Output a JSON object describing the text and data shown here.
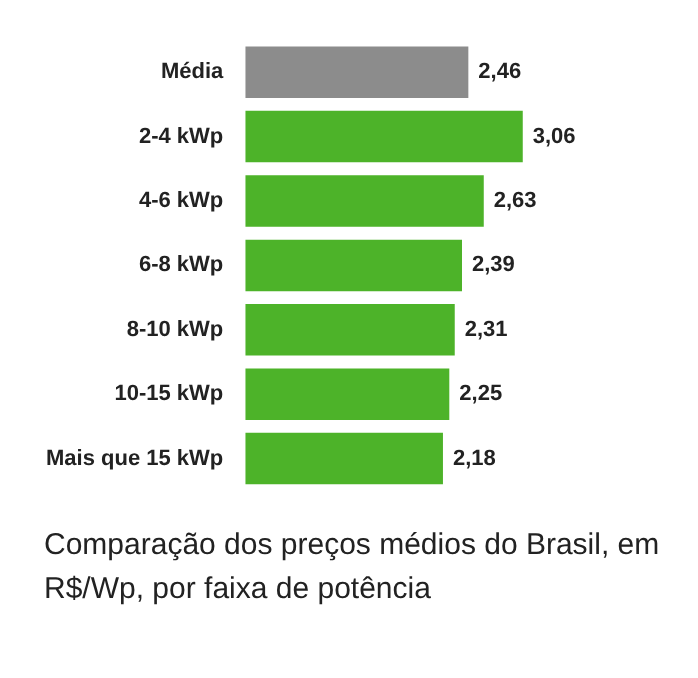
{
  "chart_data": {
    "type": "bar",
    "orientation": "horizontal",
    "title": "Comparação dos preços médios do Brasil, em R$/Wp, por faixa de potência",
    "categories": [
      "Média",
      "2-4 kWp",
      "4-6 kWp",
      "6-8 kWp",
      "8-10 kWp",
      "10-15 kWp",
      "Mais que 15 kWp"
    ],
    "values": [
      2.46,
      3.06,
      2.63,
      2.39,
      2.31,
      2.25,
      2.18
    ],
    "value_labels": [
      "2,46",
      "3,06",
      "2,63",
      "2,39",
      "2,31",
      "2,25",
      "2,18"
    ],
    "colors": [
      "#8c8c8c",
      "#4db329",
      "#4db329",
      "#4db329",
      "#4db329",
      "#4db329",
      "#4db329"
    ],
    "legend": false
  }
}
